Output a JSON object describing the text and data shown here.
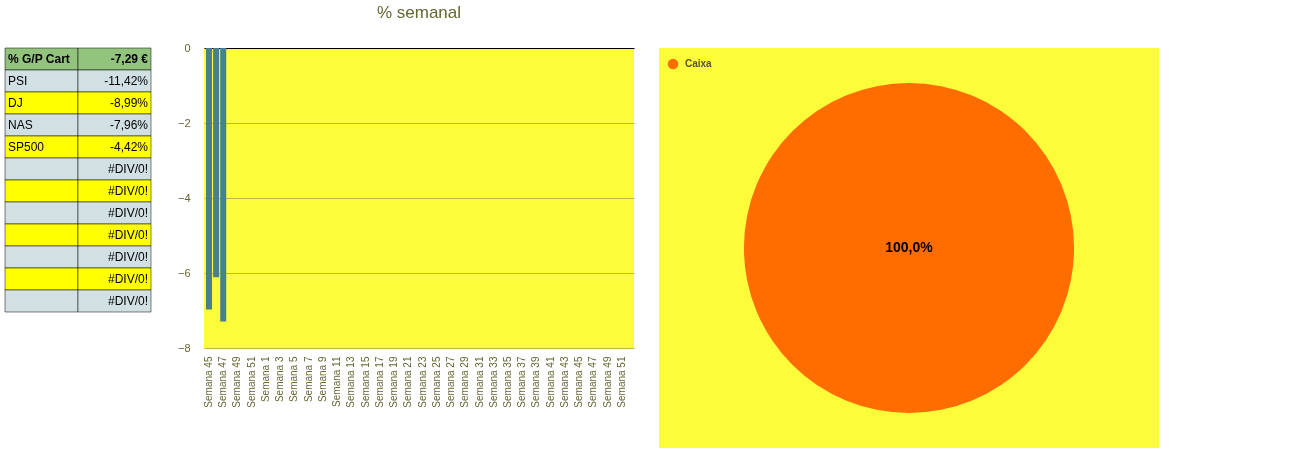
{
  "chart_data": [
    {
      "type": "other",
      "categories": [
        "% G/P Cart",
        "PSI",
        "DJ",
        "NAS",
        "SP500",
        null,
        null,
        null,
        null,
        null,
        null,
        null
      ],
      "values": [
        -7.29,
        -11.42,
        -8.99,
        -7.96,
        -4.42,
        null,
        null,
        null,
        null,
        null,
        null,
        null
      ],
      "value_labels": [
        "-7,29 €",
        "-11,42%",
        "-8,99%",
        "-7,96%",
        "-4,42%",
        "#DIV/0!",
        "#DIV/0!",
        "#DIV/0!",
        "#DIV/0!",
        "#DIV/0!",
        "#DIV/0!",
        "#DIV/0!"
      ]
    },
    {
      "type": "bar",
      "title": "% semanal",
      "categories": [
        "Semana 45",
        null,
        "Semana 47",
        null,
        "Semana 49",
        null,
        "Semana 51",
        null,
        "Semana 1",
        null,
        "Semana 3",
        null,
        "Semana 5",
        null,
        "Semana 7",
        null,
        "Semana 9",
        null,
        "Semana 11",
        null,
        "Semana 13",
        null,
        "Semana 15",
        null,
        "Semana 17",
        null,
        "Semana 19",
        null,
        "Semana 21",
        null,
        "Semana 23",
        null,
        "Semana 25",
        null,
        "Semana 27",
        null,
        "Semana 29",
        null,
        "Semana 31",
        null,
        "Semana 33",
        null,
        "Semana 35",
        null,
        "Semana 37",
        null,
        "Semana 39",
        null,
        "Semana 41",
        null,
        "Semana 43",
        null,
        "Semana 45",
        null,
        "Semana 47",
        null,
        "Semana 49",
        null,
        "Semana 51",
        null
      ],
      "values": [
        -6.97,
        -6.11,
        -7.29,
        null,
        null,
        null,
        null,
        null,
        null,
        null,
        null,
        null,
        null,
        null,
        null,
        null,
        null,
        null,
        null,
        null,
        null,
        null,
        null,
        null,
        null,
        null,
        null,
        null,
        null,
        null,
        null,
        null,
        null,
        null,
        null,
        null,
        null,
        null,
        null,
        null,
        null,
        null,
        null,
        null,
        null,
        null,
        null,
        null,
        null,
        null,
        null,
        null,
        null,
        null,
        null,
        null,
        null,
        null,
        null,
        null
      ],
      "color": "#4a7f8c",
      "ylim": [
        -8,
        0
      ],
      "yticks": [
        0,
        -2,
        -4,
        -6,
        -8
      ],
      "grid": "y",
      "legend": false
    },
    {
      "type": "pie",
      "categories": [
        "Caixa"
      ],
      "values": [
        100
      ],
      "colors": [
        "#ff6d00"
      ],
      "value_labels": [
        "100,0%"
      ],
      "legend": "top left"
    }
  ]
}
